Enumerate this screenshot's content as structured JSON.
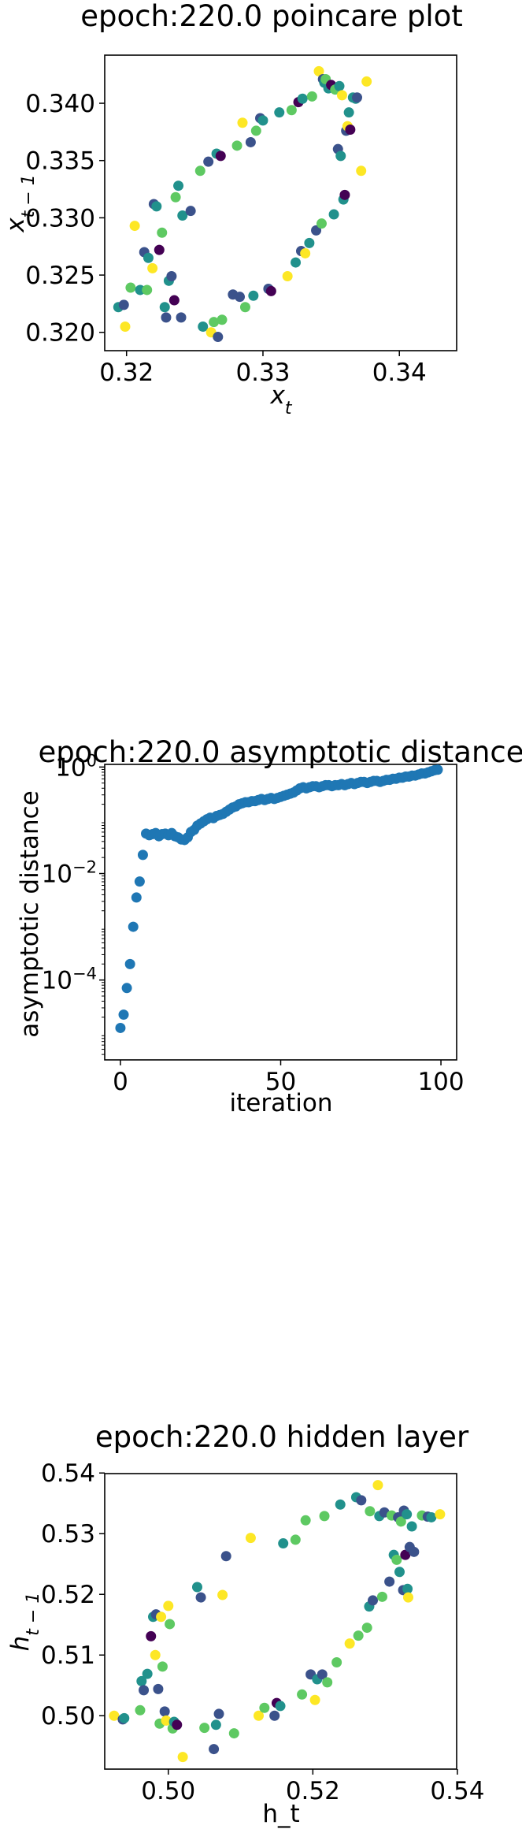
{
  "chart_data": [
    {
      "type": "scatter",
      "title": "epoch:220.0 poincare plot",
      "xlabel": "x_t",
      "ylabel": "x_{t-1}",
      "xlim": [
        0.3184,
        0.3442
      ],
      "ylim": [
        0.3184,
        0.3442
      ],
      "xticks": [
        "0.32",
        "0.33",
        "0.34"
      ],
      "yticks": [
        "0.320",
        "0.325",
        "0.330",
        "0.335",
        "0.340"
      ],
      "colormap": [
        "#440154",
        "#3b528b",
        "#21918c",
        "#5ec962",
        "#fde725"
      ],
      "points": [
        {
          "x": 0.3194,
          "y": 0.3222,
          "c": 2
        },
        {
          "x": 0.3198,
          "y": 0.3224,
          "c": 1
        },
        {
          "x": 0.3199,
          "y": 0.3205,
          "c": 4
        },
        {
          "x": 0.3203,
          "y": 0.3239,
          "c": 3
        },
        {
          "x": 0.3206,
          "y": 0.3293,
          "c": 4
        },
        {
          "x": 0.321,
          "y": 0.3237,
          "c": 2
        },
        {
          "x": 0.3213,
          "y": 0.327,
          "c": 1
        },
        {
          "x": 0.3215,
          "y": 0.3237,
          "c": 3
        },
        {
          "x": 0.3216,
          "y": 0.3265,
          "c": 2
        },
        {
          "x": 0.3219,
          "y": 0.3256,
          "c": 4
        },
        {
          "x": 0.322,
          "y": 0.3312,
          "c": 1
        },
        {
          "x": 0.3222,
          "y": 0.331,
          "c": 2
        },
        {
          "x": 0.3224,
          "y": 0.3272,
          "c": 0
        },
        {
          "x": 0.3226,
          "y": 0.3287,
          "c": 3
        },
        {
          "x": 0.3228,
          "y": 0.3222,
          "c": 2
        },
        {
          "x": 0.3229,
          "y": 0.3213,
          "c": 1
        },
        {
          "x": 0.3231,
          "y": 0.3245,
          "c": 2
        },
        {
          "x": 0.3233,
          "y": 0.3249,
          "c": 1
        },
        {
          "x": 0.3235,
          "y": 0.3228,
          "c": 0
        },
        {
          "x": 0.3236,
          "y": 0.3318,
          "c": 3
        },
        {
          "x": 0.3238,
          "y": 0.3328,
          "c": 2
        },
        {
          "x": 0.324,
          "y": 0.3213,
          "c": 1
        },
        {
          "x": 0.3241,
          "y": 0.3302,
          "c": 2
        },
        {
          "x": 0.3247,
          "y": 0.3306,
          "c": 1
        },
        {
          "x": 0.3254,
          "y": 0.3341,
          "c": 3
        },
        {
          "x": 0.3256,
          "y": 0.3205,
          "c": 2
        },
        {
          "x": 0.326,
          "y": 0.3349,
          "c": 1
        },
        {
          "x": 0.3262,
          "y": 0.32,
          "c": 4
        },
        {
          "x": 0.3264,
          "y": 0.3209,
          "c": 3
        },
        {
          "x": 0.3266,
          "y": 0.3356,
          "c": 2
        },
        {
          "x": 0.3267,
          "y": 0.3196,
          "c": 1
        },
        {
          "x": 0.3269,
          "y": 0.3354,
          "c": 0
        },
        {
          "x": 0.327,
          "y": 0.3211,
          "c": 3
        },
        {
          "x": 0.3278,
          "y": 0.3233,
          "c": 1
        },
        {
          "x": 0.3281,
          "y": 0.3363,
          "c": 3
        },
        {
          "x": 0.3283,
          "y": 0.3231,
          "c": 1
        },
        {
          "x": 0.3285,
          "y": 0.3383,
          "c": 4
        },
        {
          "x": 0.3287,
          "y": 0.3222,
          "c": 3
        },
        {
          "x": 0.3291,
          "y": 0.3366,
          "c": 1
        },
        {
          "x": 0.3293,
          "y": 0.3232,
          "c": 2
        },
        {
          "x": 0.3295,
          "y": 0.3376,
          "c": 3
        },
        {
          "x": 0.3298,
          "y": 0.3387,
          "c": 1
        },
        {
          "x": 0.33,
          "y": 0.3385,
          "c": 2
        },
        {
          "x": 0.3304,
          "y": 0.3238,
          "c": 1
        },
        {
          "x": 0.3306,
          "y": 0.3236,
          "c": 0
        },
        {
          "x": 0.3312,
          "y": 0.3392,
          "c": 2
        },
        {
          "x": 0.3318,
          "y": 0.3249,
          "c": 4
        },
        {
          "x": 0.3321,
          "y": 0.3394,
          "c": 3
        },
        {
          "x": 0.3324,
          "y": 0.3261,
          "c": 2
        },
        {
          "x": 0.3326,
          "y": 0.3401,
          "c": 0
        },
        {
          "x": 0.3328,
          "y": 0.3271,
          "c": 1
        },
        {
          "x": 0.3329,
          "y": 0.3404,
          "c": 2
        },
        {
          "x": 0.3331,
          "y": 0.3269,
          "c": 4
        },
        {
          "x": 0.3334,
          "y": 0.3278,
          "c": 2
        },
        {
          "x": 0.3336,
          "y": 0.3406,
          "c": 3
        },
        {
          "x": 0.3339,
          "y": 0.3289,
          "c": 1
        },
        {
          "x": 0.3341,
          "y": 0.3428,
          "c": 4
        },
        {
          "x": 0.3343,
          "y": 0.3295,
          "c": 3
        },
        {
          "x": 0.3344,
          "y": 0.3421,
          "c": 1
        },
        {
          "x": 0.3345,
          "y": 0.3418,
          "c": 2
        },
        {
          "x": 0.3346,
          "y": 0.3421,
          "c": 3
        },
        {
          "x": 0.3348,
          "y": 0.3413,
          "c": 2
        },
        {
          "x": 0.335,
          "y": 0.3416,
          "c": 0
        },
        {
          "x": 0.3352,
          "y": 0.3303,
          "c": 2
        },
        {
          "x": 0.3353,
          "y": 0.3412,
          "c": 3
        },
        {
          "x": 0.3355,
          "y": 0.336,
          "c": 1
        },
        {
          "x": 0.3356,
          "y": 0.3415,
          "c": 2
        },
        {
          "x": 0.3357,
          "y": 0.3354,
          "c": 2
        },
        {
          "x": 0.3358,
          "y": 0.3407,
          "c": 4
        },
        {
          "x": 0.3359,
          "y": 0.3316,
          "c": 2
        },
        {
          "x": 0.336,
          "y": 0.332,
          "c": 0
        },
        {
          "x": 0.3361,
          "y": 0.3376,
          "c": 1
        },
        {
          "x": 0.3362,
          "y": 0.338,
          "c": 4
        },
        {
          "x": 0.3363,
          "y": 0.3392,
          "c": 2
        },
        {
          "x": 0.3364,
          "y": 0.3377,
          "c": 0
        },
        {
          "x": 0.3366,
          "y": 0.3405,
          "c": 2
        },
        {
          "x": 0.3368,
          "y": 0.3404,
          "c": 2
        },
        {
          "x": 0.3369,
          "y": 0.3405,
          "c": 1
        },
        {
          "x": 0.3372,
          "y": 0.3341,
          "c": 4
        },
        {
          "x": 0.3376,
          "y": 0.3419,
          "c": 4
        }
      ]
    },
    {
      "type": "scatter",
      "title": "epoch:220.0 asymptotic distance",
      "xlabel": "iteration",
      "ylabel": "asymptotic distance",
      "xlim": [
        -4.9,
        104.9
      ],
      "ylim_log10": [
        -5.5,
        0.05
      ],
      "yscale": "log",
      "xticks": [
        0,
        50,
        100
      ],
      "yticks": [
        {
          "base": "10",
          "exp": "0",
          "log10": 0
        },
        {
          "base": "10",
          "exp": "−2",
          "log10": -2
        },
        {
          "base": "10",
          "exp": "−4",
          "log10": -4
        }
      ],
      "color": "#1f77b4",
      "x": [
        0,
        1,
        2,
        3,
        4,
        5,
        6,
        7,
        8,
        9,
        10,
        11,
        12,
        13,
        14,
        15,
        16,
        17,
        18,
        19,
        20,
        21,
        22,
        23,
        24,
        25,
        26,
        27,
        28,
        29,
        30,
        31,
        32,
        33,
        34,
        35,
        36,
        37,
        38,
        39,
        40,
        41,
        42,
        43,
        44,
        45,
        46,
        47,
        48,
        49,
        50,
        51,
        52,
        53,
        54,
        55,
        56,
        57,
        58,
        59,
        60,
        61,
        62,
        63,
        64,
        65,
        66,
        67,
        68,
        69,
        70,
        71,
        72,
        73,
        74,
        75,
        76,
        77,
        78,
        79,
        80,
        81,
        82,
        83,
        84,
        85,
        86,
        87,
        88,
        89,
        90,
        91,
        92,
        93,
        94,
        95,
        96,
        97,
        98,
        99
      ],
      "y_log10": [
        -4.9,
        -4.65,
        -4.15,
        -3.7,
        -3.0,
        -2.45,
        -2.15,
        -1.65,
        -1.25,
        -1.28,
        -1.26,
        -1.24,
        -1.3,
        -1.26,
        -1.25,
        -1.28,
        -1.24,
        -1.3,
        -1.32,
        -1.36,
        -1.37,
        -1.32,
        -1.22,
        -1.18,
        -1.1,
        -1.06,
        -1.02,
        -0.98,
        -0.95,
        -0.96,
        -0.92,
        -0.9,
        -0.88,
        -0.84,
        -0.8,
        -0.76,
        -0.74,
        -0.7,
        -0.68,
        -0.66,
        -0.66,
        -0.64,
        -0.64,
        -0.62,
        -0.6,
        -0.62,
        -0.6,
        -0.58,
        -0.6,
        -0.58,
        -0.56,
        -0.54,
        -0.52,
        -0.5,
        -0.48,
        -0.44,
        -0.4,
        -0.38,
        -0.4,
        -0.38,
        -0.36,
        -0.36,
        -0.38,
        -0.36,
        -0.34,
        -0.34,
        -0.36,
        -0.34,
        -0.34,
        -0.32,
        -0.34,
        -0.32,
        -0.3,
        -0.32,
        -0.3,
        -0.28,
        -0.28,
        -0.3,
        -0.28,
        -0.26,
        -0.26,
        -0.28,
        -0.26,
        -0.24,
        -0.24,
        -0.22,
        -0.22,
        -0.2,
        -0.2,
        -0.18,
        -0.18,
        -0.16,
        -0.16,
        -0.14,
        -0.12,
        -0.12,
        -0.1,
        -0.08,
        -0.06,
        -0.05
      ]
    },
    {
      "type": "scatter",
      "title": "epoch:220.0 hidden layer",
      "xlabel": "h_t",
      "ylabel": "h_{t-1}",
      "xlim": [
        0.4912,
        0.5399
      ],
      "ylim": [
        0.4912,
        0.5399
      ],
      "xticks": [
        "0.50",
        "0.52",
        "0.54"
      ],
      "yticks": [
        "0.50",
        "0.51",
        "0.52",
        "0.53",
        "0.54"
      ],
      "colormap": [
        "#440154",
        "#3b528b",
        "#21918c",
        "#5ec962",
        "#fde725"
      ],
      "points": [
        {
          "x": 0.4925,
          "y": 0.5,
          "c": 4
        },
        {
          "x": 0.4937,
          "y": 0.4994,
          "c": 1
        },
        {
          "x": 0.4939,
          "y": 0.4996,
          "c": 2
        },
        {
          "x": 0.4961,
          "y": 0.5009,
          "c": 3
        },
        {
          "x": 0.4963,
          "y": 0.5057,
          "c": 2
        },
        {
          "x": 0.4966,
          "y": 0.5042,
          "c": 1
        },
        {
          "x": 0.4971,
          "y": 0.5069,
          "c": 2
        },
        {
          "x": 0.4976,
          "y": 0.5131,
          "c": 0
        },
        {
          "x": 0.4979,
          "y": 0.5163,
          "c": 2
        },
        {
          "x": 0.4982,
          "y": 0.51,
          "c": 4
        },
        {
          "x": 0.4983,
          "y": 0.5167,
          "c": 1
        },
        {
          "x": 0.4986,
          "y": 0.5044,
          "c": 1
        },
        {
          "x": 0.4988,
          "y": 0.4987,
          "c": 3
        },
        {
          "x": 0.499,
          "y": 0.5163,
          "c": 4
        },
        {
          "x": 0.4992,
          "y": 0.5081,
          "c": 3
        },
        {
          "x": 0.4995,
          "y": 0.5007,
          "c": 1
        },
        {
          "x": 0.4997,
          "y": 0.4992,
          "c": 4
        },
        {
          "x": 0.5,
          "y": 0.5181,
          "c": 4
        },
        {
          "x": 0.5002,
          "y": 0.5151,
          "c": 3
        },
        {
          "x": 0.5006,
          "y": 0.4979,
          "c": 3
        },
        {
          "x": 0.5008,
          "y": 0.499,
          "c": 2
        },
        {
          "x": 0.5012,
          "y": 0.4985,
          "c": 0
        },
        {
          "x": 0.502,
          "y": 0.4932,
          "c": 4
        },
        {
          "x": 0.504,
          "y": 0.5212,
          "c": 2
        },
        {
          "x": 0.5045,
          "y": 0.5195,
          "c": 1
        },
        {
          "x": 0.505,
          "y": 0.498,
          "c": 3
        },
        {
          "x": 0.5063,
          "y": 0.4945,
          "c": 1
        },
        {
          "x": 0.5066,
          "y": 0.4985,
          "c": 2
        },
        {
          "x": 0.507,
          "y": 0.5003,
          "c": 1
        },
        {
          "x": 0.5075,
          "y": 0.5199,
          "c": 4
        },
        {
          "x": 0.508,
          "y": 0.5263,
          "c": 1
        },
        {
          "x": 0.5091,
          "y": 0.4971,
          "c": 3
        },
        {
          "x": 0.5114,
          "y": 0.5293,
          "c": 4
        },
        {
          "x": 0.5125,
          "y": 0.5,
          "c": 4
        },
        {
          "x": 0.5133,
          "y": 0.5013,
          "c": 3
        },
        {
          "x": 0.5147,
          "y": 0.5,
          "c": 1
        },
        {
          "x": 0.515,
          "y": 0.5021,
          "c": 0
        },
        {
          "x": 0.5155,
          "y": 0.5016,
          "c": 2
        },
        {
          "x": 0.5159,
          "y": 0.5284,
          "c": 2
        },
        {
          "x": 0.5176,
          "y": 0.529,
          "c": 3
        },
        {
          "x": 0.5185,
          "y": 0.5035,
          "c": 3
        },
        {
          "x": 0.519,
          "y": 0.5322,
          "c": 3
        },
        {
          "x": 0.5197,
          "y": 0.5068,
          "c": 1
        },
        {
          "x": 0.5203,
          "y": 0.5026,
          "c": 4
        },
        {
          "x": 0.5206,
          "y": 0.506,
          "c": 2
        },
        {
          "x": 0.5213,
          "y": 0.5068,
          "c": 1
        },
        {
          "x": 0.5216,
          "y": 0.5329,
          "c": 3
        },
        {
          "x": 0.522,
          "y": 0.5055,
          "c": 3
        },
        {
          "x": 0.5233,
          "y": 0.5088,
          "c": 3
        },
        {
          "x": 0.5238,
          "y": 0.5348,
          "c": 2
        },
        {
          "x": 0.5251,
          "y": 0.5119,
          "c": 4
        },
        {
          "x": 0.526,
          "y": 0.536,
          "c": 2
        },
        {
          "x": 0.5263,
          "y": 0.5132,
          "c": 3
        },
        {
          "x": 0.5267,
          "y": 0.5355,
          "c": 1
        },
        {
          "x": 0.5275,
          "y": 0.5145,
          "c": 3
        },
        {
          "x": 0.5278,
          "y": 0.518,
          "c": 2
        },
        {
          "x": 0.5279,
          "y": 0.5337,
          "c": 3
        },
        {
          "x": 0.5283,
          "y": 0.519,
          "c": 1
        },
        {
          "x": 0.529,
          "y": 0.538,
          "c": 4
        },
        {
          "x": 0.5292,
          "y": 0.5329,
          "c": 2
        },
        {
          "x": 0.5296,
          "y": 0.5196,
          "c": 3
        },
        {
          "x": 0.5299,
          "y": 0.5335,
          "c": 1
        },
        {
          "x": 0.5306,
          "y": 0.5221,
          "c": 1
        },
        {
          "x": 0.5309,
          "y": 0.533,
          "c": 3
        },
        {
          "x": 0.5312,
          "y": 0.5265,
          "c": 2
        },
        {
          "x": 0.5316,
          "y": 0.5257,
          "c": 3
        },
        {
          "x": 0.5318,
          "y": 0.5327,
          "c": 1
        },
        {
          "x": 0.532,
          "y": 0.5237,
          "c": 2
        },
        {
          "x": 0.5322,
          "y": 0.532,
          "c": 3
        },
        {
          "x": 0.5325,
          "y": 0.5207,
          "c": 1
        },
        {
          "x": 0.5326,
          "y": 0.5338,
          "c": 1
        },
        {
          "x": 0.5328,
          "y": 0.5265,
          "c": 0
        },
        {
          "x": 0.533,
          "y": 0.5332,
          "c": 2
        },
        {
          "x": 0.5331,
          "y": 0.5209,
          "c": 2
        },
        {
          "x": 0.5332,
          "y": 0.5195,
          "c": 4
        },
        {
          "x": 0.5334,
          "y": 0.5278,
          "c": 1
        },
        {
          "x": 0.5337,
          "y": 0.5312,
          "c": 2
        },
        {
          "x": 0.534,
          "y": 0.527,
          "c": 1
        },
        {
          "x": 0.5351,
          "y": 0.533,
          "c": 3
        },
        {
          "x": 0.5359,
          "y": 0.5328,
          "c": 1
        },
        {
          "x": 0.5364,
          "y": 0.5327,
          "c": 2
        },
        {
          "x": 0.5376,
          "y": 0.5332,
          "c": 4
        }
      ]
    }
  ]
}
